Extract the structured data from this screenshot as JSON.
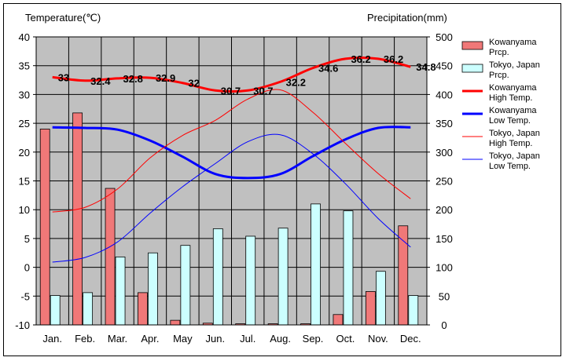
{
  "chart_data": {
    "type": "bar+line",
    "categories": [
      "Jan.",
      "Feb.",
      "Mar.",
      "Apr.",
      "May",
      "Jun.",
      "Jul.",
      "Aug.",
      "Sep.",
      "Oct.",
      "Nov.",
      "Dec."
    ],
    "left_axis": {
      "label": "Temperature(℃)",
      "range": [
        -10,
        40
      ],
      "ticks": [
        -10,
        -5,
        0,
        5,
        10,
        15,
        20,
        25,
        30,
        35,
        40
      ]
    },
    "right_axis": {
      "label": "Precipitation(mm)",
      "range": [
        0,
        500
      ],
      "ticks": [
        0,
        50,
        100,
        150,
        200,
        250,
        300,
        350,
        400,
        450,
        500
      ]
    },
    "grid": true,
    "bars": [
      {
        "name": "Kowanyama Prcp.",
        "color": "#f07878",
        "values": [
          340,
          368,
          237,
          56,
          8,
          3,
          2,
          2,
          2,
          18,
          58,
          172
        ]
      },
      {
        "name": "Tokyo, Japan Prcp.",
        "color": "#ccffff",
        "values": [
          51,
          56,
          118,
          125,
          138,
          167,
          154,
          168,
          210,
          198,
          93,
          51
        ]
      }
    ],
    "lines": [
      {
        "name": "Kowanyama High Temp.",
        "color": "#ff0000",
        "width": 3,
        "values": [
          33,
          32.4,
          32.8,
          32.9,
          32,
          30.7,
          30.7,
          32.2,
          34.6,
          36.2,
          36.2,
          34.8
        ],
        "data_labels": [
          "33",
          "32.4",
          "32.8",
          "32.9",
          "32",
          "30.7",
          "30.7",
          "32.2",
          "34.6",
          "36.2",
          "36.2",
          "34.8"
        ]
      },
      {
        "name": "Kowanyama Low Temp.",
        "color": "#0000ff",
        "width": 3,
        "values": [
          24.3,
          24.2,
          23.9,
          22,
          19.2,
          16.2,
          15.5,
          16.2,
          19.3,
          22.2,
          24.2,
          24.3
        ]
      },
      {
        "name": "Tokyo, Japan High Temp.",
        "color": "#ff0000",
        "width": 1,
        "values": [
          9.6,
          10.4,
          13.6,
          19,
          22.9,
          25.5,
          29.2,
          30.8,
          26.9,
          21.5,
          16.3,
          11.9
        ]
      },
      {
        "name": "Tokyo, Japan Low Temp.",
        "color": "#0000ff",
        "width": 1,
        "values": [
          0.9,
          1.7,
          4.4,
          9.4,
          14,
          18,
          21.8,
          23,
          19.7,
          14.5,
          8.5,
          3.5
        ]
      }
    ],
    "legend": [
      {
        "line1": "Kowanyama",
        "line2": "Prcp.",
        "kind": "bar",
        "color": "#f07878"
      },
      {
        "line1": "Tokyo, Japan",
        "line2": "Prcp.",
        "kind": "bar",
        "color": "#ccffff"
      },
      {
        "line1": "Kowanyama",
        "line2": "High Temp.",
        "kind": "line",
        "color": "#ff0000",
        "width": 3
      },
      {
        "line1": "Kowanyama",
        "line2": "Low Temp.",
        "kind": "line",
        "color": "#0000ff",
        "width": 3
      },
      {
        "line1": "Tokyo, Japan",
        "line2": "High Temp.",
        "kind": "line",
        "color": "#ff0000",
        "width": 1
      },
      {
        "line1": "Tokyo, Japan",
        "line2": "Low Temp.",
        "kind": "line",
        "color": "#0000ff",
        "width": 1
      }
    ],
    "legend_placement": "right"
  }
}
